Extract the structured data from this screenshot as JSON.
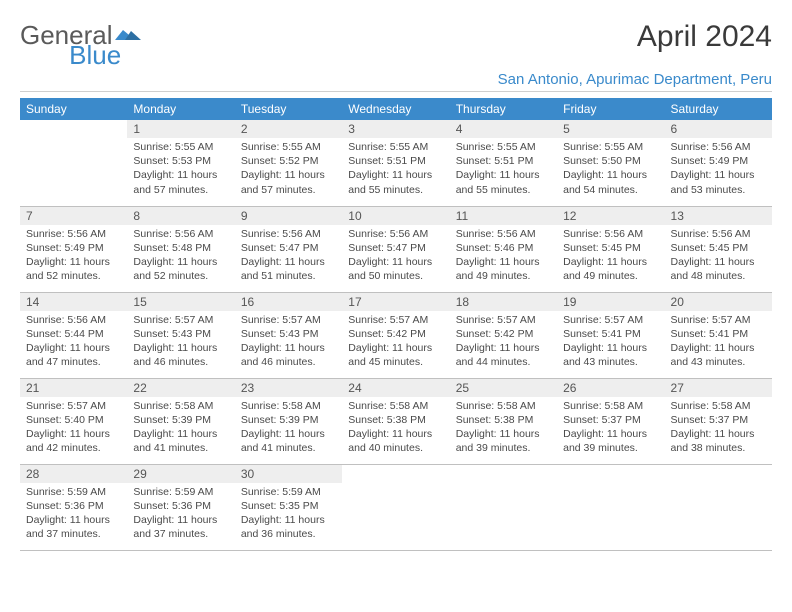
{
  "brand": {
    "part1": "General",
    "part2": "Blue"
  },
  "title": "April 2024",
  "location": "San Antonio, Apurimac Department, Peru",
  "colors": {
    "header_bg": "#3b8acb",
    "header_fg": "#ffffff",
    "daynum_bg": "#eeeeee",
    "text": "#4a4a4a",
    "rule": "#c0c0c0",
    "brand_blue": "#3a8acb"
  },
  "weekdays": [
    "Sunday",
    "Monday",
    "Tuesday",
    "Wednesday",
    "Thursday",
    "Friday",
    "Saturday"
  ],
  "weeks": [
    [
      null,
      {
        "n": "1",
        "sr": "5:55 AM",
        "ss": "5:53 PM",
        "dl": "11 hours and 57 minutes."
      },
      {
        "n": "2",
        "sr": "5:55 AM",
        "ss": "5:52 PM",
        "dl": "11 hours and 57 minutes."
      },
      {
        "n": "3",
        "sr": "5:55 AM",
        "ss": "5:51 PM",
        "dl": "11 hours and 55 minutes."
      },
      {
        "n": "4",
        "sr": "5:55 AM",
        "ss": "5:51 PM",
        "dl": "11 hours and 55 minutes."
      },
      {
        "n": "5",
        "sr": "5:55 AM",
        "ss": "5:50 PM",
        "dl": "11 hours and 54 minutes."
      },
      {
        "n": "6",
        "sr": "5:56 AM",
        "ss": "5:49 PM",
        "dl": "11 hours and 53 minutes."
      }
    ],
    [
      {
        "n": "7",
        "sr": "5:56 AM",
        "ss": "5:49 PM",
        "dl": "11 hours and 52 minutes."
      },
      {
        "n": "8",
        "sr": "5:56 AM",
        "ss": "5:48 PM",
        "dl": "11 hours and 52 minutes."
      },
      {
        "n": "9",
        "sr": "5:56 AM",
        "ss": "5:47 PM",
        "dl": "11 hours and 51 minutes."
      },
      {
        "n": "10",
        "sr": "5:56 AM",
        "ss": "5:47 PM",
        "dl": "11 hours and 50 minutes."
      },
      {
        "n": "11",
        "sr": "5:56 AM",
        "ss": "5:46 PM",
        "dl": "11 hours and 49 minutes."
      },
      {
        "n": "12",
        "sr": "5:56 AM",
        "ss": "5:45 PM",
        "dl": "11 hours and 49 minutes."
      },
      {
        "n": "13",
        "sr": "5:56 AM",
        "ss": "5:45 PM",
        "dl": "11 hours and 48 minutes."
      }
    ],
    [
      {
        "n": "14",
        "sr": "5:56 AM",
        "ss": "5:44 PM",
        "dl": "11 hours and 47 minutes."
      },
      {
        "n": "15",
        "sr": "5:57 AM",
        "ss": "5:43 PM",
        "dl": "11 hours and 46 minutes."
      },
      {
        "n": "16",
        "sr": "5:57 AM",
        "ss": "5:43 PM",
        "dl": "11 hours and 46 minutes."
      },
      {
        "n": "17",
        "sr": "5:57 AM",
        "ss": "5:42 PM",
        "dl": "11 hours and 45 minutes."
      },
      {
        "n": "18",
        "sr": "5:57 AM",
        "ss": "5:42 PM",
        "dl": "11 hours and 44 minutes."
      },
      {
        "n": "19",
        "sr": "5:57 AM",
        "ss": "5:41 PM",
        "dl": "11 hours and 43 minutes."
      },
      {
        "n": "20",
        "sr": "5:57 AM",
        "ss": "5:41 PM",
        "dl": "11 hours and 43 minutes."
      }
    ],
    [
      {
        "n": "21",
        "sr": "5:57 AM",
        "ss": "5:40 PM",
        "dl": "11 hours and 42 minutes."
      },
      {
        "n": "22",
        "sr": "5:58 AM",
        "ss": "5:39 PM",
        "dl": "11 hours and 41 minutes."
      },
      {
        "n": "23",
        "sr": "5:58 AM",
        "ss": "5:39 PM",
        "dl": "11 hours and 41 minutes."
      },
      {
        "n": "24",
        "sr": "5:58 AM",
        "ss": "5:38 PM",
        "dl": "11 hours and 40 minutes."
      },
      {
        "n": "25",
        "sr": "5:58 AM",
        "ss": "5:38 PM",
        "dl": "11 hours and 39 minutes."
      },
      {
        "n": "26",
        "sr": "5:58 AM",
        "ss": "5:37 PM",
        "dl": "11 hours and 39 minutes."
      },
      {
        "n": "27",
        "sr": "5:58 AM",
        "ss": "5:37 PM",
        "dl": "11 hours and 38 minutes."
      }
    ],
    [
      {
        "n": "28",
        "sr": "5:59 AM",
        "ss": "5:36 PM",
        "dl": "11 hours and 37 minutes."
      },
      {
        "n": "29",
        "sr": "5:59 AM",
        "ss": "5:36 PM",
        "dl": "11 hours and 37 minutes."
      },
      {
        "n": "30",
        "sr": "5:59 AM",
        "ss": "5:35 PM",
        "dl": "11 hours and 36 minutes."
      },
      null,
      null,
      null,
      null
    ]
  ],
  "labels": {
    "sunrise": "Sunrise:",
    "sunset": "Sunset:",
    "daylight": "Daylight:"
  }
}
